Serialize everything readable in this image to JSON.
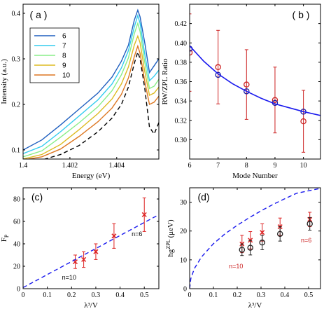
{
  "chart_data": [
    {
      "id": "a",
      "type": "line",
      "panel_label": "( a )",
      "xlabel": "Energy (eV)",
      "ylabel": "Intensity (a.u.)",
      "xlim": [
        1.4,
        1.4058
      ],
      "ylim": [
        0.08,
        0.42
      ],
      "xticks": [
        1.4,
        1.402,
        1.404
      ],
      "xtick_labels": [
        "1.4",
        "1.402",
        "1.404"
      ],
      "yticks": [
        0.1,
        0.2,
        0.3,
        0.4
      ],
      "ytick_labels": [
        "0.1",
        "0.2",
        "0.3",
        "0.4"
      ],
      "legend_position": "upper-left",
      "series": [
        {
          "name": "6",
          "color": "#1f5fbf",
          "points": [
            [
              1.4,
              0.1
            ],
            [
              1.4008,
              0.122
            ],
            [
              1.4016,
              0.155
            ],
            [
              1.4024,
              0.19
            ],
            [
              1.4032,
              0.225
            ],
            [
              1.4038,
              0.26
            ],
            [
              1.4042,
              0.295
            ],
            [
              1.4045,
              0.33
            ],
            [
              1.40475,
              0.385
            ],
            [
              1.4049,
              0.407
            ],
            [
              1.405,
              0.392
            ],
            [
              1.4052,
              0.335
            ],
            [
              1.4054,
              0.27
            ],
            [
              1.4056,
              0.285
            ],
            [
              1.4058,
              0.3
            ]
          ]
        },
        {
          "name": "7",
          "color": "#33ccee",
          "points": [
            [
              1.4,
              0.092
            ],
            [
              1.4008,
              0.108
            ],
            [
              1.4016,
              0.14
            ],
            [
              1.4024,
              0.175
            ],
            [
              1.4032,
              0.21
            ],
            [
              1.4038,
              0.245
            ],
            [
              1.4042,
              0.28
            ],
            [
              1.4045,
              0.318
            ],
            [
              1.40475,
              0.37
            ],
            [
              1.4049,
              0.395
            ],
            [
              1.405,
              0.378
            ],
            [
              1.4052,
              0.31
            ],
            [
              1.4054,
              0.252
            ],
            [
              1.4056,
              0.262
            ],
            [
              1.4058,
              0.275
            ]
          ]
        },
        {
          "name": "8",
          "color": "#88ee88",
          "points": [
            [
              1.4,
              0.085
            ],
            [
              1.4008,
              0.098
            ],
            [
              1.4016,
              0.128
            ],
            [
              1.4024,
              0.16
            ],
            [
              1.4032,
              0.195
            ],
            [
              1.4038,
              0.23
            ],
            [
              1.4042,
              0.265
            ],
            [
              1.4045,
              0.302
            ],
            [
              1.40475,
              0.355
            ],
            [
              1.4049,
              0.378
            ],
            [
              1.405,
              0.36
            ],
            [
              1.4052,
              0.292
            ],
            [
              1.4054,
              0.235
            ],
            [
              1.4056,
              0.24
            ],
            [
              1.4058,
              0.255
            ]
          ]
        },
        {
          "name": "9",
          "color": "#ddbb22",
          "points": [
            [
              1.4,
              0.08
            ],
            [
              1.4008,
              0.09
            ],
            [
              1.4016,
              0.112
            ],
            [
              1.4024,
              0.145
            ],
            [
              1.4032,
              0.18
            ],
            [
              1.4038,
              0.212
            ],
            [
              1.4042,
              0.245
            ],
            [
              1.4045,
              0.282
            ],
            [
              1.40475,
              0.33
            ],
            [
              1.4049,
              0.35
            ],
            [
              1.405,
              0.335
            ],
            [
              1.4052,
              0.272
            ],
            [
              1.4054,
              0.22
            ],
            [
              1.4056,
              0.225
            ],
            [
              1.4058,
              0.238
            ]
          ]
        },
        {
          "name": "10",
          "color": "#dd7722",
          "points": [
            [
              1.4,
              0.078
            ],
            [
              1.4008,
              0.085
            ],
            [
              1.4016,
              0.102
            ],
            [
              1.4024,
              0.13
            ],
            [
              1.4032,
              0.162
            ],
            [
              1.4038,
              0.192
            ],
            [
              1.4042,
              0.222
            ],
            [
              1.4045,
              0.258
            ],
            [
              1.40475,
              0.305
            ],
            [
              1.4049,
              0.328
            ],
            [
              1.405,
              0.312
            ],
            [
              1.4052,
              0.25
            ],
            [
              1.4054,
              0.2
            ],
            [
              1.4056,
              0.205
            ],
            [
              1.4058,
              0.218
            ]
          ]
        },
        {
          "name": "",
          "color": "#000000",
          "dashed": true,
          "points": [
            [
              1.4,
              0.075
            ],
            [
              1.4008,
              0.078
            ],
            [
              1.4016,
              0.09
            ],
            [
              1.4024,
              0.11
            ],
            [
              1.4032,
              0.14
            ],
            [
              1.4038,
              0.17
            ],
            [
              1.4042,
              0.2
            ],
            [
              1.4045,
              0.238
            ],
            [
              1.40475,
              0.29
            ],
            [
              1.4049,
              0.315
            ],
            [
              1.405,
              0.3
            ],
            [
              1.4052,
              0.235
            ],
            [
              1.4054,
              0.15
            ],
            [
              1.4056,
              0.135
            ],
            [
              1.4058,
              0.16
            ]
          ]
        }
      ]
    },
    {
      "id": "b",
      "type": "scatter",
      "panel_label": "( b )",
      "xlabel": "Mode Number",
      "ylabel": "RW/ZPL Ratio",
      "xlim": [
        6,
        10.6
      ],
      "ylim": [
        0.28,
        0.44
      ],
      "xticks": [
        6,
        7,
        8,
        9,
        10
      ],
      "xtick_labels": [
        "6",
        "7",
        "8",
        "9",
        "10"
      ],
      "yticks": [
        0.3,
        0.32,
        0.34,
        0.36,
        0.38,
        0.4,
        0.42
      ],
      "ytick_labels": [
        "0.30",
        "0.32",
        "0.34",
        "0.36",
        "0.38",
        "0.40",
        "0.42"
      ],
      "series": [
        {
          "name": "",
          "color": "#cc2222",
          "marker": "circle-open",
          "x": [
            6,
            7,
            8,
            9,
            10
          ],
          "y": [
            0.39,
            0.375,
            0.357,
            0.341,
            0.319
          ],
          "err": [
            0.04,
            0.038,
            0.036,
            0.034,
            0.032
          ]
        },
        {
          "name": "",
          "color": "#1a1aa0",
          "marker": "circle-open",
          "x": [
            6,
            7,
            8,
            9,
            10
          ],
          "y": [
            0.394,
            0.367,
            0.35,
            0.338,
            0.329
          ]
        },
        {
          "name": "",
          "color": "#1a1aee",
          "type": "fit",
          "points": [
            [
              6,
              0.397
            ],
            [
              6.5,
              0.381
            ],
            [
              7,
              0.368
            ],
            [
              7.5,
              0.358
            ],
            [
              8,
              0.35
            ],
            [
              8.5,
              0.343
            ],
            [
              9,
              0.337
            ],
            [
              9.5,
              0.333
            ],
            [
              10,
              0.329
            ],
            [
              10.6,
              0.325
            ]
          ]
        }
      ]
    },
    {
      "id": "c",
      "type": "scatter",
      "panel_label": "(c)",
      "xlabel": "λ³/V",
      "ylabel": "F",
      "ylabel_sub": "P",
      "xlim": [
        0,
        0.56
      ],
      "ylim": [
        0,
        90
      ],
      "xticks": [
        0,
        0.1,
        0.2,
        0.3,
        0.4,
        0.5
      ],
      "xtick_labels": [
        "0",
        "0.1",
        "0.2",
        "0.3",
        "0.4",
        "0.5"
      ],
      "yticks": [
        0,
        20,
        40,
        60,
        80
      ],
      "ytick_labels": [
        "0",
        "20",
        "40",
        "60",
        "80"
      ],
      "annotations": [
        {
          "text": "n=10",
          "x": 0.19,
          "y": 8,
          "color": "#000000"
        },
        {
          "text": "n=6",
          "x": 0.47,
          "y": 47,
          "color": "#000000"
        }
      ],
      "series": [
        {
          "name": "",
          "color": "#dd2222",
          "marker": "x",
          "x": [
            0.215,
            0.25,
            0.3,
            0.375,
            0.5
          ],
          "y": [
            24,
            26,
            33,
            47,
            66
          ],
          "err": [
            6,
            7,
            7,
            11,
            15
          ]
        },
        {
          "name": "",
          "color": "#1a1aee",
          "type": "fit-dashed",
          "points": [
            [
              0,
              1
            ],
            [
              0.56,
              66
            ]
          ]
        }
      ]
    },
    {
      "id": "d",
      "type": "scatter",
      "panel_label": "(d)",
      "xlabel": "λ³/V",
      "ylabel": "ħg",
      "ylabel_sup": "ZPL",
      "ylabel_unit": "(μeV)",
      "xlim": [
        0,
        0.55
      ],
      "ylim": [
        0,
        35
      ],
      "xticks": [
        0,
        0.1,
        0.2,
        0.3,
        0.4,
        0.5
      ],
      "xtick_labels": [
        "0",
        "0.1",
        "0.2",
        "0.3",
        "0.4",
        "0.5"
      ],
      "yticks": [
        0,
        10,
        20,
        30
      ],
      "ytick_labels": [
        "0",
        "10",
        "20",
        "30"
      ],
      "annotations": [
        {
          "text": "n=10",
          "x": 0.195,
          "y": 7,
          "color": "#cc2222"
        },
        {
          "text": "n=6",
          "x": 0.49,
          "y": 16,
          "color": "#cc2222"
        }
      ],
      "series": [
        {
          "name": "",
          "color": "#dd2222",
          "marker": "x",
          "x": [
            0.22,
            0.255,
            0.305,
            0.38,
            0.505
          ],
          "y": [
            15.5,
            16.8,
            19.5,
            21.5,
            24
          ],
          "err": [
            3,
            3,
            3,
            3,
            2.5
          ]
        },
        {
          "name": "",
          "color": "#222222",
          "marker": "circle-open",
          "x": [
            0.22,
            0.255,
            0.305,
            0.38,
            0.505
          ],
          "y": [
            13.5,
            14.2,
            16,
            19,
            22.5
          ],
          "err": [
            2,
            2.5,
            2.5,
            2.5,
            2.2
          ]
        },
        {
          "name": "",
          "color": "#1a1aee",
          "type": "fit-dashed",
          "points": [
            [
              0.0,
              0.0
            ],
            [
              0.005,
              3.5
            ],
            [
              0.02,
              7.0
            ],
            [
              0.05,
              11.0
            ],
            [
              0.1,
              15.6
            ],
            [
              0.15,
              19.1
            ],
            [
              0.2,
              22.0
            ],
            [
              0.25,
              24.6
            ],
            [
              0.3,
              27.0
            ],
            [
              0.35,
              29.2
            ],
            [
              0.4,
              31.2
            ],
            [
              0.45,
              33.1
            ],
            [
              0.55,
              34.8
            ]
          ]
        }
      ]
    }
  ]
}
